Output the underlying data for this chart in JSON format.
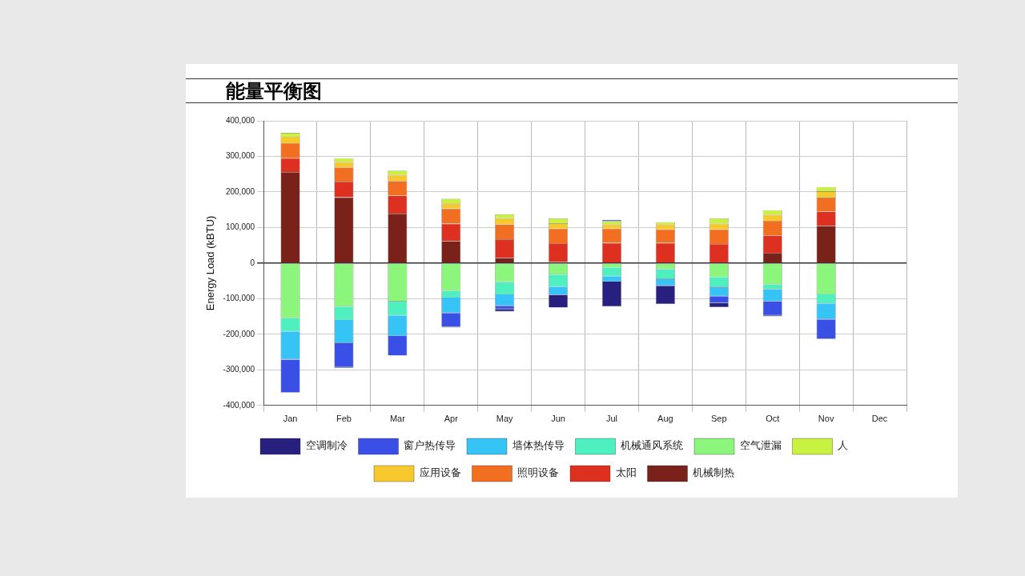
{
  "chart_data": {
    "type": "bar",
    "title": "能量平衡图",
    "ylabel": "Energy Load (kBTU)",
    "categories": [
      "Jan",
      "Feb",
      "Mar",
      "Apr",
      "May",
      "Jun",
      "Jul",
      "Aug",
      "Sep",
      "Oct",
      "Nov",
      "Dec"
    ],
    "stacked": true,
    "grid": true,
    "legend": "bottom",
    "ylim": [
      -400000,
      400000
    ],
    "yticks": [
      {
        "value": -400000,
        "label": "-400,000"
      },
      {
        "value": -300000,
        "label": "-300,000"
      },
      {
        "value": -200000,
        "label": "-200,000"
      },
      {
        "value": -100000,
        "label": "-100,000"
      },
      0,
      {
        "value": 100000,
        "label": "100,000"
      },
      {
        "value": 200000,
        "label": "200,000"
      },
      {
        "value": 300000,
        "label": "300,000"
      },
      {
        "value": 400000,
        "label": "400,000"
      }
    ],
    "series": [
      {
        "name": "机械制热",
        "color": "#7a2119",
        "values": [
          256000,
          185000,
          139000,
          62000,
          15000,
          3000,
          0,
          0,
          0,
          29000,
          105000,
          null
        ]
      },
      {
        "name": "太阳",
        "color": "#de3020",
        "values": [
          39000,
          44000,
          51000,
          49000,
          52000,
          53000,
          57000,
          57000,
          54000,
          49000,
          40000,
          null
        ]
      },
      {
        "name": "照明设备",
        "color": "#f26f22",
        "values": [
          42000,
          40000,
          41000,
          42000,
          42000,
          41000,
          40000,
          38000,
          41000,
          41000,
          39000,
          null
        ]
      },
      {
        "name": "应用设备",
        "color": "#f8c92c",
        "values": [
          18000,
          15000,
          17000,
          15000,
          17000,
          15000,
          12000,
          14000,
          16000,
          17000,
          18000,
          null
        ]
      },
      {
        "name": "人",
        "color": "#c8f23f",
        "values": [
          11000,
          11000,
          12000,
          13000,
          11000,
          14000,
          9000,
          6000,
          15000,
          13000,
          12000,
          null
        ]
      },
      {
        "name": "空气泄漏",
        "color": "#8cf57c",
        "values": [
          -155000,
          -122000,
          -108000,
          -78000,
          -53000,
          -32000,
          -12000,
          -17000,
          -39000,
          -60000,
          -88000,
          null
        ]
      },
      {
        "name": "机械通风系统",
        "color": "#4ef0c0",
        "values": [
          -37000,
          -38000,
          -39000,
          -19000,
          -35000,
          -34000,
          -25000,
          -28000,
          -28000,
          -14000,
          -25000,
          null
        ]
      },
      {
        "name": "墙体热传导",
        "color": "#35c4f5",
        "values": [
          -79000,
          -65000,
          -58000,
          -43000,
          -32000,
          -23000,
          -15000,
          -19000,
          -26000,
          -33000,
          -45000,
          null
        ]
      },
      {
        "name": "窗户热传导",
        "color": "#3a4fe6",
        "values": [
          -93000,
          -68000,
          -55000,
          -39000,
          -9000,
          0,
          4000,
          0,
          -19000,
          -40000,
          -55000,
          null
        ]
      },
      {
        "name": "空调制冷",
        "color": "#27207f",
        "values": [
          0,
          -2000,
          0,
          -2000,
          -7000,
          -36000,
          -70000,
          -51000,
          -12000,
          -3000,
          0,
          null
        ]
      }
    ]
  }
}
